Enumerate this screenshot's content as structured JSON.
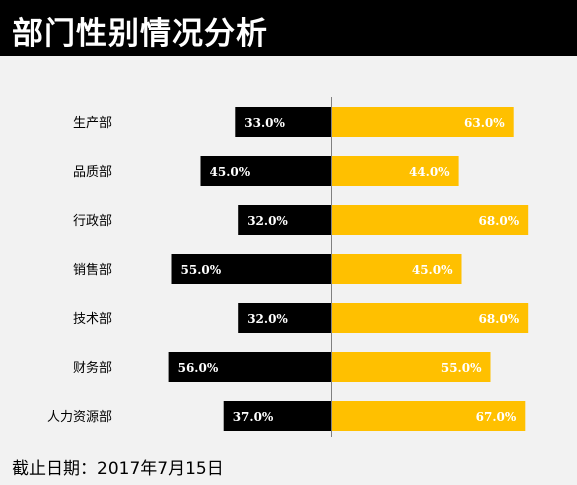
{
  "header": {
    "title": "部门性别情况分析"
  },
  "footer": {
    "text": "截止日期：2017年7月15日"
  },
  "colors": {
    "left": "#000000",
    "right": "#ffc000",
    "background": "#f2f2f2",
    "axis": "#808080"
  },
  "chart_data": {
    "type": "bar",
    "orientation": "horizontal-diverging",
    "categories": [
      "生产部",
      "品质部",
      "行政部",
      "销售部",
      "技术部",
      "财务部",
      "人力资源部"
    ],
    "series": [
      {
        "values": [
          33.0,
          45.0,
          32.0,
          55.0,
          32.0,
          56.0,
          37.0
        ],
        "labels": [
          "33.0%",
          "45.0%",
          "32.0%",
          "55.0%",
          "32.0%",
          "56.0%",
          "37.0%"
        ]
      },
      {
        "values": [
          63.0,
          44.0,
          68.0,
          45.0,
          68.0,
          55.0,
          67.0
        ],
        "labels": [
          "63.0%",
          "44.0%",
          "68.0%",
          "45.0%",
          "68.0%",
          "55.0%",
          "67.0%"
        ]
      }
    ],
    "grid": false,
    "legend": "none"
  }
}
